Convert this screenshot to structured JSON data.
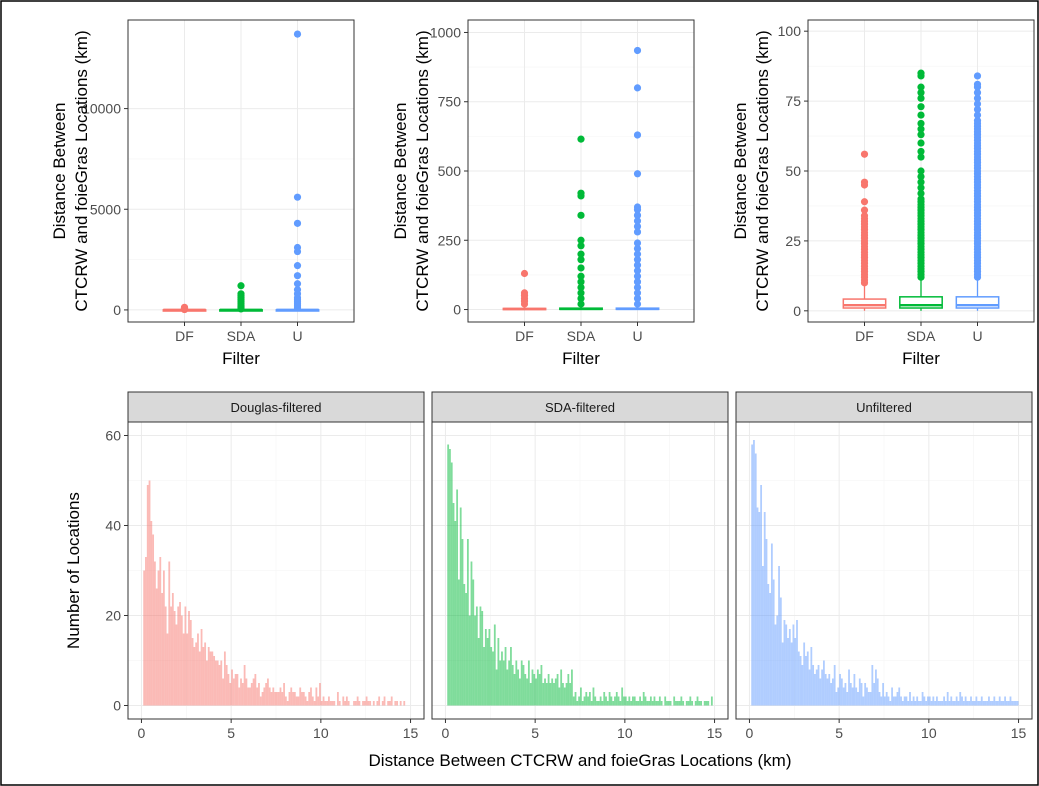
{
  "colors": {
    "DF": "#F8766D",
    "SDA": "#00BA38",
    "U": "#619CFF"
  },
  "chart_data": [
    {
      "type": "boxplot",
      "xlabel": "Filter",
      "ylabel_lines": [
        "Distance Between",
        "CTCRW and foieGras Locations (km)"
      ],
      "categories": [
        "DF",
        "SDA",
        "U"
      ],
      "ylim": [
        -600,
        14400
      ],
      "yticks": [
        0,
        5000,
        10000
      ],
      "ytick_labels": [
        "0",
        "5000",
        "10000"
      ],
      "boxes": [
        {
          "category": "DF",
          "q1": 1,
          "median": 2,
          "q3": 4,
          "lower": 0,
          "upper": 8,
          "outliers": [
            20,
            40,
            60,
            80,
            100,
            130
          ]
        },
        {
          "category": "SDA",
          "q1": 1,
          "median": 2,
          "q3": 5,
          "lower": 0,
          "upper": 10,
          "outliers": [
            50,
            100,
            150,
            200,
            300,
            400,
            500,
            600,
            700,
            800,
            1200
          ]
        },
        {
          "category": "U",
          "q1": 1,
          "median": 2,
          "q3": 5,
          "lower": 0,
          "upper": 10,
          "outliers": [
            100,
            200,
            300,
            400,
            500,
            600,
            800,
            1000,
            1300,
            1700,
            2200,
            2900,
            3100,
            4300,
            5600,
            13700
          ]
        }
      ]
    },
    {
      "type": "boxplot",
      "xlabel": "Filter",
      "ylabel_lines": [
        "Distance Between",
        "CTCRW and foieGras Locations (km)"
      ],
      "categories": [
        "DF",
        "SDA",
        "U"
      ],
      "ylim": [
        -45,
        1045
      ],
      "yticks": [
        0,
        250,
        500,
        750,
        1000
      ],
      "ytick_labels": [
        "0",
        "250",
        "500",
        "750",
        "1000"
      ],
      "boxes": [
        {
          "category": "DF",
          "q1": 1,
          "median": 2,
          "q3": 4,
          "lower": 0,
          "upper": 8,
          "outliers": [
            20,
            30,
            40,
            50,
            60,
            130
          ]
        },
        {
          "category": "SDA",
          "q1": 1,
          "median": 2,
          "q3": 5,
          "lower": 0,
          "upper": 10,
          "outliers": [
            20,
            40,
            60,
            80,
            100,
            120,
            150,
            180,
            200,
            230,
            250,
            340,
            410,
            420,
            615
          ]
        },
        {
          "category": "U",
          "q1": 1,
          "median": 2,
          "q3": 5,
          "lower": 0,
          "upper": 10,
          "outliers": [
            20,
            40,
            60,
            80,
            100,
            120,
            140,
            160,
            180,
            200,
            220,
            240,
            280,
            300,
            320,
            340,
            360,
            370,
            490,
            630,
            800,
            935
          ]
        }
      ]
    },
    {
      "type": "boxplot",
      "xlabel": "Filter",
      "ylabel_lines": [
        "Distance Between",
        "CTCRW and foieGras Locations (km)"
      ],
      "categories": [
        "DF",
        "SDA",
        "U"
      ],
      "ylim": [
        -4,
        104
      ],
      "yticks": [
        0,
        25,
        50,
        75,
        100
      ],
      "ytick_labels": [
        "0",
        "25",
        "50",
        "75",
        "100"
      ],
      "boxes": [
        {
          "category": "DF",
          "q1": 1,
          "median": 2,
          "q3": 4.2,
          "lower": 0,
          "upper": 9,
          "outliers": [
            10,
            11,
            12,
            13,
            14,
            15,
            16,
            17,
            18,
            19,
            20,
            21,
            22,
            23,
            24,
            25,
            26,
            27,
            28,
            29,
            30,
            31,
            32,
            33,
            34,
            36,
            39,
            45,
            46,
            56
          ]
        },
        {
          "category": "SDA",
          "q1": 1,
          "median": 2,
          "q3": 5,
          "lower": 0,
          "upper": 11,
          "outliers": [
            12,
            13,
            14,
            15,
            16,
            17,
            18,
            19,
            20,
            21,
            22,
            23,
            24,
            25,
            26,
            27,
            28,
            29,
            30,
            31,
            32,
            33,
            34,
            35,
            36,
            37,
            38,
            39,
            40,
            42,
            44,
            46,
            48,
            50,
            55,
            57,
            60,
            63,
            65,
            67,
            70,
            73,
            76,
            78,
            80,
            84,
            85
          ]
        },
        {
          "category": "U",
          "q1": 1,
          "median": 2,
          "q3": 5,
          "lower": 0,
          "upper": 11,
          "outliers": [
            12,
            13,
            14,
            15,
            16,
            17,
            18,
            19,
            20,
            21,
            22,
            23,
            24,
            25,
            26,
            27,
            28,
            29,
            30,
            31,
            32,
            33,
            34,
            35,
            36,
            37,
            38,
            39,
            40,
            41,
            42,
            43,
            44,
            45,
            46,
            47,
            48,
            49,
            50,
            51,
            52,
            53,
            54,
            55,
            56,
            57,
            58,
            59,
            60,
            61,
            62,
            63,
            64,
            65,
            66,
            67,
            68,
            70,
            72,
            74,
            76,
            78,
            80,
            81,
            84
          ]
        }
      ]
    },
    {
      "type": "bar",
      "subtype": "histogram-facets",
      "xlabel": "Distance Between CTCRW and foieGras Locations (km)",
      "ylabel": "Number of Locations",
      "xlim": [
        -0.75,
        15.75
      ],
      "ylim": [
        -3,
        63
      ],
      "xticks": [
        0,
        5,
        10,
        15
      ],
      "yticks": [
        0,
        20,
        40,
        60
      ],
      "bin_start": 0,
      "bin_width": 0.1,
      "facets": [
        {
          "strip": "Douglas-filtered",
          "color_key": "DF",
          "counts": [
            0,
            30,
            33,
            49,
            50,
            41,
            38,
            32,
            26,
            30,
            33,
            25,
            30,
            22,
            16,
            32,
            22,
            25,
            21,
            18,
            22,
            23,
            20,
            16,
            22,
            16,
            21,
            19,
            15,
            13,
            14,
            16,
            12,
            17,
            13,
            14,
            10,
            13,
            12,
            12,
            11,
            10,
            10,
            9,
            10,
            6,
            12,
            9,
            7,
            5,
            8,
            6,
            7,
            7,
            4,
            6,
            5,
            9,
            6,
            4,
            4,
            5,
            6,
            7,
            4,
            5,
            2,
            3,
            4,
            5,
            6,
            4,
            3,
            4,
            3,
            3,
            3,
            4,
            3,
            5,
            2,
            1,
            3,
            4,
            3,
            3,
            2,
            2,
            4,
            3,
            3,
            2,
            1,
            3,
            4,
            2,
            1,
            4,
            2,
            5,
            1,
            2,
            1,
            1,
            2,
            1,
            1,
            1,
            0,
            3,
            1,
            0,
            2,
            1,
            2,
            1,
            0,
            0,
            1,
            1,
            2,
            1,
            0,
            1,
            1,
            2,
            1,
            1,
            0,
            1,
            0,
            1,
            2,
            0,
            1,
            2,
            0,
            1,
            1,
            2,
            0,
            1,
            1,
            0,
            1,
            0,
            1,
            0,
            0,
            0
          ]
        },
        {
          "strip": "SDA-filtered",
          "color_key": "SDA",
          "counts": [
            0,
            58,
            57,
            54,
            45,
            41,
            48,
            28,
            44,
            37,
            27,
            25,
            37,
            20,
            32,
            28,
            20,
            22,
            15,
            22,
            21,
            13,
            17,
            15,
            17,
            13,
            12,
            18,
            8,
            15,
            10,
            12,
            10,
            13,
            8,
            10,
            13,
            9,
            7,
            10,
            8,
            6,
            10,
            9,
            7,
            6,
            10,
            5,
            8,
            7,
            6,
            8,
            7,
            9,
            5,
            6,
            5,
            7,
            5,
            6,
            5,
            6,
            7,
            4,
            8,
            5,
            4,
            5,
            7,
            5,
            8,
            2,
            3,
            1,
            2,
            4,
            1,
            2,
            3,
            2,
            3,
            1,
            4,
            2,
            1,
            1,
            2,
            1,
            3,
            2,
            1,
            3,
            2,
            1,
            2,
            3,
            2,
            1,
            4,
            2,
            2,
            1,
            2,
            1,
            2,
            2,
            1,
            1,
            2,
            1,
            3,
            2,
            1,
            1,
            2,
            1,
            2,
            1,
            1,
            2,
            1,
            0,
            2,
            1,
            1,
            1,
            0,
            2,
            1,
            1,
            1,
            2,
            1,
            0,
            1,
            1,
            2,
            1,
            0,
            1,
            2,
            1,
            1,
            0,
            1,
            1,
            1,
            0,
            2,
            0
          ]
        },
        {
          "strip": "Unfiltered",
          "color_key": "U",
          "counts": [
            0,
            58,
            59,
            56,
            44,
            43,
            49,
            31,
            43,
            37,
            27,
            25,
            36,
            28,
            18,
            20,
            31,
            24,
            14,
            19,
            18,
            15,
            17,
            14,
            18,
            15,
            19,
            12,
            11,
            9,
            14,
            11,
            12,
            8,
            13,
            9,
            7,
            8,
            9,
            6,
            8,
            10,
            7,
            6,
            7,
            5,
            6,
            9,
            3,
            4,
            7,
            6,
            4,
            5,
            3,
            8,
            5,
            4,
            7,
            4,
            3,
            6,
            5,
            2,
            5,
            4,
            3,
            3,
            9,
            5,
            8,
            6,
            3,
            2,
            5,
            2,
            3,
            2,
            1,
            4,
            2,
            2,
            3,
            4,
            2,
            1,
            2,
            2,
            1,
            3,
            1,
            2,
            1,
            2,
            1,
            1,
            3,
            2,
            1,
            2,
            2,
            1,
            2,
            1,
            2,
            1,
            1,
            1,
            2,
            1,
            3,
            1,
            2,
            1,
            1,
            2,
            1,
            3,
            2,
            1,
            2,
            1,
            1,
            2,
            1,
            1,
            2,
            1,
            1,
            2,
            1,
            1,
            1,
            2,
            1,
            1,
            2,
            1,
            1,
            2,
            1,
            1,
            2,
            1,
            1,
            2,
            1,
            1,
            1,
            1
          ]
        }
      ]
    }
  ]
}
